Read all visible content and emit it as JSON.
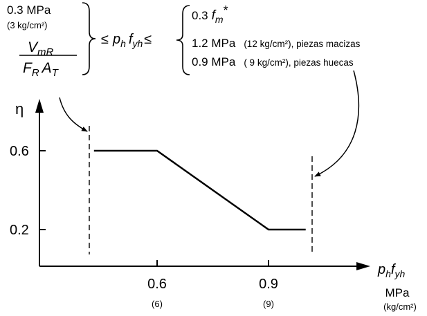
{
  "chart_data": {
    "type": "line",
    "xlabel": {
      "p": "p",
      "p_sub": "h",
      "f": "f",
      "f_sub": "yh"
    },
    "x_unit": "MPa",
    "x_unit_alt": "(kg/cm²)",
    "ylabel": "η",
    "x_ticks": [
      {
        "value": 0.6,
        "label": "0.6",
        "sub": "(6)"
      },
      {
        "value": 0.9,
        "label": "0.9",
        "sub": "(9)"
      }
    ],
    "y_ticks": [
      {
        "value": 0.6,
        "label": "0.6"
      },
      {
        "value": 0.2,
        "label": "0.2"
      }
    ],
    "series": [
      {
        "x": [
          0.43,
          0.6,
          0.9,
          1.0
        ],
        "y": [
          0.6,
          0.6,
          0.2,
          0.2
        ]
      }
    ],
    "limits": {
      "lower_x": 0.43,
      "upper_x": 1.0
    },
    "annotations": {
      "lower_bound": {
        "line1": "0.3 MPa",
        "line2": "(3 kg/cm²)",
        "num": "V",
        "num_sub": "mR",
        "den_a": "F",
        "den_a_sub": "R",
        "den_b": "A",
        "den_b_sub": "T"
      },
      "middle": {
        "leq1": "≤",
        "p": "p",
        "p_sub": "h",
        "f": "f",
        "f_sub": "yh",
        "leq2": "≤"
      },
      "upper_bound": {
        "row1": "0.3",
        "row1_f": "f",
        "row1_sub": "m",
        "row1_sup": "*",
        "row2_val": "1.2 MPa",
        "row2_note": "(12 kg/cm²), piezas macizas",
        "row3_val": "0.9 MPa",
        "row3_note": "( 9 kg/cm²),  piezas huecas"
      }
    }
  }
}
